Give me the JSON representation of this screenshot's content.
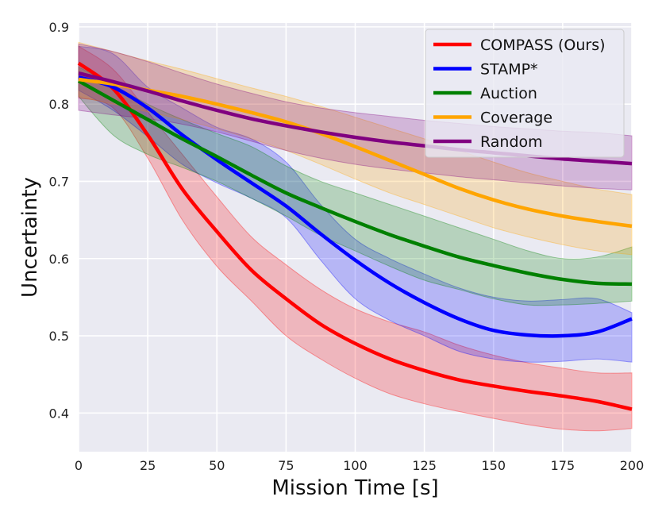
{
  "chart_data": {
    "type": "line",
    "title": "",
    "xlabel": "Mission Time [s]",
    "ylabel": "Uncertainty",
    "xlim": [
      0,
      200
    ],
    "ylim": [
      0.35,
      0.905
    ],
    "grid": true,
    "legend_position": "top-right",
    "xticks": [
      0,
      25,
      50,
      75,
      100,
      125,
      150,
      175,
      200
    ],
    "yticks": [
      0.4,
      0.5,
      0.6,
      0.7,
      0.8,
      0.9
    ],
    "x": [
      0,
      12.5,
      25,
      37.5,
      50,
      62.5,
      75,
      87.5,
      100,
      112.5,
      125,
      137.5,
      150,
      162.5,
      175,
      187.5,
      200
    ],
    "series": [
      {
        "name": "COMPASS (Ours)",
        "color": "#ff0000",
        "mean": [
          0.853,
          0.82,
          0.76,
          0.69,
          0.635,
          0.585,
          0.548,
          0.515,
          0.49,
          0.47,
          0.455,
          0.443,
          0.435,
          0.428,
          0.422,
          0.415,
          0.405
        ],
        "lower": [
          0.808,
          0.795,
          0.73,
          0.65,
          0.59,
          0.545,
          0.5,
          0.47,
          0.445,
          0.425,
          0.412,
          0.402,
          0.393,
          0.385,
          0.379,
          0.377,
          0.38
        ],
        "upper": [
          0.875,
          0.845,
          0.79,
          0.735,
          0.68,
          0.628,
          0.592,
          0.56,
          0.535,
          0.518,
          0.505,
          0.488,
          0.475,
          0.465,
          0.458,
          0.452,
          0.452
        ]
      },
      {
        "name": "STAMP*",
        "color": "#0000ff",
        "mean": [
          0.835,
          0.822,
          0.795,
          0.76,
          0.728,
          0.698,
          0.668,
          0.632,
          0.598,
          0.568,
          0.543,
          0.522,
          0.507,
          0.501,
          0.5,
          0.505,
          0.522
        ],
        "lower": [
          0.818,
          0.792,
          0.758,
          0.722,
          0.698,
          0.678,
          0.653,
          0.598,
          0.548,
          0.52,
          0.5,
          0.48,
          0.47,
          0.466,
          0.467,
          0.47,
          0.466
        ],
        "upper": [
          0.875,
          0.865,
          0.822,
          0.795,
          0.77,
          0.755,
          0.725,
          0.67,
          0.625,
          0.6,
          0.58,
          0.562,
          0.55,
          0.545,
          0.547,
          0.548,
          0.53
        ]
      },
      {
        "name": "Auction",
        "color": "#008000",
        "mean": [
          0.83,
          0.805,
          0.78,
          0.755,
          0.732,
          0.708,
          0.685,
          0.666,
          0.648,
          0.631,
          0.616,
          0.602,
          0.591,
          0.581,
          0.573,
          0.568,
          0.567
        ],
        "lower": [
          0.81,
          0.76,
          0.735,
          0.718,
          0.7,
          0.678,
          0.655,
          0.63,
          0.61,
          0.59,
          0.572,
          0.56,
          0.548,
          0.54,
          0.54,
          0.542,
          0.545
        ],
        "upper": [
          0.848,
          0.825,
          0.8,
          0.78,
          0.762,
          0.745,
          0.72,
          0.7,
          0.685,
          0.67,
          0.655,
          0.64,
          0.625,
          0.61,
          0.6,
          0.602,
          0.615
        ]
      },
      {
        "name": "Coverage",
        "color": "#ffa500",
        "mean": [
          0.832,
          0.826,
          0.818,
          0.81,
          0.8,
          0.789,
          0.777,
          0.762,
          0.745,
          0.727,
          0.709,
          0.691,
          0.676,
          0.664,
          0.655,
          0.648,
          0.642
        ],
        "lower": [
          0.81,
          0.8,
          0.79,
          0.78,
          0.768,
          0.755,
          0.74,
          0.722,
          0.703,
          0.685,
          0.67,
          0.655,
          0.64,
          0.628,
          0.618,
          0.61,
          0.605
        ],
        "upper": [
          0.88,
          0.868,
          0.856,
          0.845,
          0.833,
          0.821,
          0.81,
          0.797,
          0.783,
          0.769,
          0.755,
          0.74,
          0.725,
          0.711,
          0.7,
          0.69,
          0.683
        ]
      },
      {
        "name": "Random",
        "color": "#800080",
        "mean": [
          0.84,
          0.829,
          0.817,
          0.804,
          0.792,
          0.781,
          0.772,
          0.764,
          0.757,
          0.751,
          0.746,
          0.741,
          0.737,
          0.733,
          0.729,
          0.726,
          0.723
        ],
        "lower": [
          0.792,
          0.786,
          0.781,
          0.774,
          0.764,
          0.752,
          0.74,
          0.73,
          0.722,
          0.716,
          0.711,
          0.706,
          0.702,
          0.698,
          0.694,
          0.691,
          0.689
        ],
        "upper": [
          0.878,
          0.868,
          0.855,
          0.84,
          0.826,
          0.814,
          0.803,
          0.795,
          0.789,
          0.784,
          0.779,
          0.775,
          0.771,
          0.768,
          0.765,
          0.763,
          0.759
        ]
      }
    ]
  }
}
